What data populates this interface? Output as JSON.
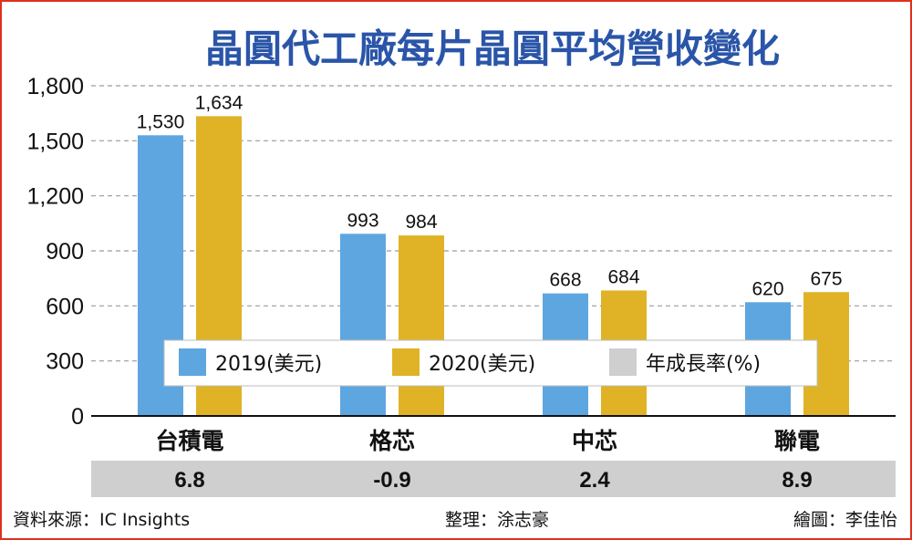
{
  "colors": {
    "series_2019": "#5ea6e0",
    "series_2020": "#e0b226",
    "growth_band": "#cfcfcf",
    "title": "#2a55a8",
    "frame": "#e0301e",
    "grid": "#9a9a9a"
  },
  "chart_data": {
    "type": "bar",
    "title": "晶圓代工廠每片晶圓平均營收變化",
    "categories": [
      "台積電",
      "格芯",
      "中芯",
      "聯電"
    ],
    "series": [
      {
        "name": "2019(美元)",
        "values": [
          1530,
          993,
          668,
          620
        ],
        "labels": [
          "1,530",
          "993",
          "668",
          "620"
        ]
      },
      {
        "name": "2020(美元)",
        "values": [
          1634,
          984,
          684,
          675
        ],
        "labels": [
          "1,634",
          "984",
          "684",
          "675"
        ]
      }
    ],
    "growth": {
      "name": "年成長率(%)",
      "values": [
        6.8,
        -0.9,
        2.4,
        8.9
      ],
      "labels": [
        "6.8",
        "-0.9",
        "2.4",
        "8.9"
      ]
    },
    "yticks": [
      "0",
      "300",
      "600",
      "900",
      "1,200",
      "1,500",
      "1,800"
    ],
    "ylim": [
      0,
      1800
    ],
    "grid": true,
    "legend_position": "bottom-center"
  },
  "footer": {
    "source": "資料來源：IC Insights",
    "editor": "整理：涂志豪",
    "artist": "繪圖：李佳怡"
  }
}
